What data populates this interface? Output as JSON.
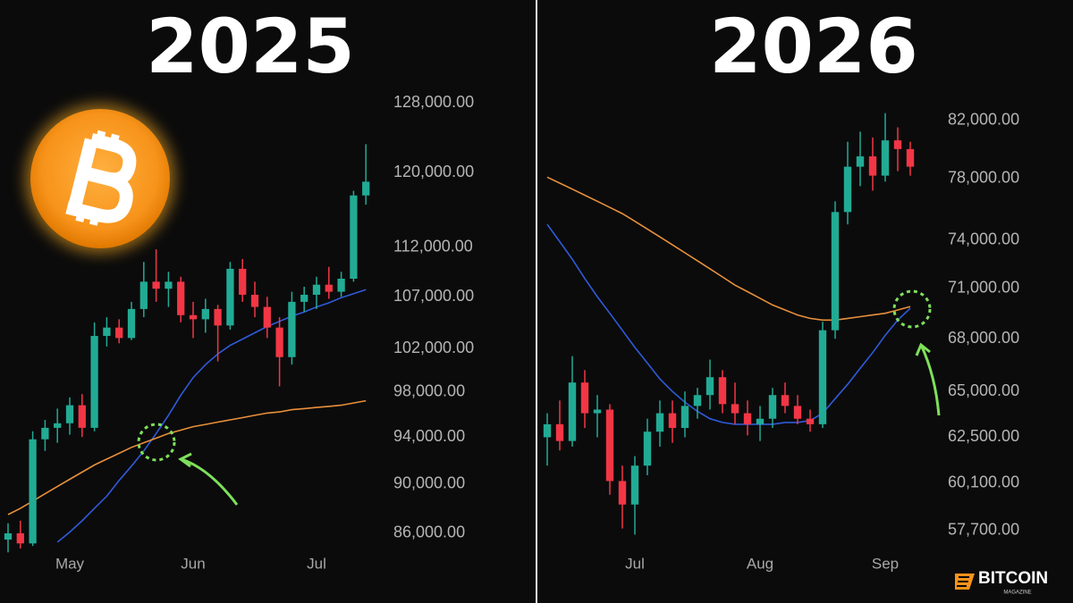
{
  "chart_data": [
    {
      "type": "candlestick",
      "title": "2025",
      "log": true,
      "up_color": "#22ab94",
      "down_color": "#f23645",
      "categories": [
        null,
        null,
        null,
        null,
        null,
        "May",
        null,
        null,
        null,
        null,
        null,
        null,
        null,
        null,
        null,
        "Jun",
        null,
        null,
        null,
        null,
        null,
        null,
        null,
        null,
        null,
        "Jul",
        null,
        null,
        null,
        null
      ],
      "open": [
        85500,
        86000,
        85200,
        93800,
        94800,
        95200,
        96800,
        94800,
        103200,
        104000,
        103000,
        105800,
        108500,
        107800,
        108500,
        105200,
        104800,
        105800,
        104200,
        109800,
        107200,
        106000,
        104000,
        101200,
        106500,
        107200,
        108200,
        107500,
        108800,
        117500
      ],
      "high": [
        86800,
        87000,
        94500,
        95500,
        96500,
        97500,
        97800,
        104500,
        105000,
        104800,
        106500,
        110500,
        111800,
        109500,
        109000,
        106500,
        106800,
        106200,
        110500,
        110800,
        108500,
        107000,
        105000,
        107500,
        108000,
        109000,
        110000,
        109500,
        118000,
        123200
      ],
      "low": [
        84500,
        84800,
        85000,
        92800,
        93500,
        94200,
        94000,
        94500,
        102200,
        102500,
        102800,
        105000,
        106500,
        106000,
        104500,
        103000,
        103500,
        100800,
        103800,
        106500,
        105000,
        103000,
        98500,
        100500,
        105500,
        105800,
        106800,
        107000,
        108500,
        116500
      ],
      "close": [
        86000,
        85200,
        93800,
        94800,
        95200,
        96800,
        94800,
        103200,
        104000,
        103000,
        105800,
        108500,
        107800,
        108500,
        105200,
        104800,
        105800,
        104200,
        109800,
        107200,
        106000,
        104000,
        101200,
        106500,
        107200,
        108200,
        107500,
        108800,
        117500,
        119000
      ],
      "lines": [
        {
          "color": "#2f5bd8",
          "values": [
            null,
            null,
            null,
            null,
            85300,
            86100,
            87000,
            88000,
            89000,
            90300,
            91500,
            92800,
            94300,
            95900,
            97700,
            99300,
            100500,
            101500,
            102300,
            102900,
            103500,
            104100,
            104600,
            105100,
            105500,
            106000,
            106400,
            106900,
            107300,
            107700
          ]
        },
        {
          "color": "#e8903a",
          "values": [
            87500,
            88000,
            88600,
            89200,
            89800,
            90400,
            91000,
            91600,
            92100,
            92600,
            93100,
            93500,
            93900,
            94300,
            94600,
            94900,
            95100,
            95300,
            95500,
            95700,
            95900,
            96100,
            96200,
            96400,
            96500,
            96600,
            96700,
            96800,
            97000,
            97200
          ]
        }
      ],
      "ylim": [
        83000,
        129600
      ],
      "yticks": [
        {
          "value": 128000,
          "label": "128,000.00"
        },
        {
          "value": 120000,
          "label": "120,000.00"
        },
        {
          "value": 112000,
          "label": "112,000.00"
        },
        {
          "value": 107000,
          "label": "107,000.00"
        },
        {
          "value": 102000,
          "label": "102,000.00"
        },
        {
          "value": 98000,
          "label": "98,000.00"
        },
        {
          "value": 94000,
          "label": "94,000.00"
        },
        {
          "value": 90000,
          "label": "90,000.00"
        },
        {
          "value": 86000,
          "label": "86,000.00"
        }
      ]
    },
    {
      "type": "candlestick",
      "title": "2026",
      "log": true,
      "up_color": "#22ab94",
      "down_color": "#f23645",
      "categories": [
        null,
        null,
        null,
        null,
        null,
        null,
        null,
        "Jul",
        null,
        null,
        null,
        null,
        null,
        null,
        null,
        null,
        null,
        "Aug",
        null,
        null,
        null,
        null,
        null,
        null,
        null,
        null,
        null,
        "Sep",
        null,
        null
      ],
      "open": [
        62500,
        63200,
        62300,
        65500,
        63800,
        64000,
        60200,
        59000,
        61000,
        62800,
        63800,
        63000,
        64200,
        64800,
        65800,
        64300,
        63800,
        63200,
        63500,
        64800,
        64200,
        63500,
        63200,
        68500,
        75800,
        78800,
        79500,
        78200,
        80600,
        80000
      ],
      "high": [
        63800,
        64500,
        67000,
        66200,
        64800,
        64300,
        61000,
        61500,
        63500,
        64500,
        64500,
        65000,
        65200,
        66800,
        66200,
        65500,
        64500,
        64200,
        65200,
        65500,
        64800,
        64000,
        69000,
        76500,
        80500,
        81200,
        80800,
        82500,
        81500,
        80500
      ],
      "low": [
        61000,
        61800,
        62000,
        63000,
        62500,
        59500,
        57800,
        57500,
        60500,
        62000,
        62200,
        62500,
        63500,
        64000,
        63800,
        63200,
        62600,
        62300,
        63000,
        63800,
        63200,
        62800,
        63000,
        68000,
        75000,
        77500,
        77200,
        77800,
        78500,
        78200
      ],
      "close": [
        63200,
        62300,
        65500,
        63800,
        64000,
        60200,
        59000,
        61000,
        62800,
        63800,
        63000,
        64200,
        64800,
        65800,
        64300,
        63800,
        63200,
        63500,
        64800,
        64200,
        63500,
        63200,
        68500,
        75800,
        78800,
        79500,
        78200,
        80600,
        80000,
        78800
      ],
      "lines": [
        {
          "color": "#2f5bd8",
          "values": [
            75000,
            73900,
            72800,
            71600,
            70500,
            69500,
            68500,
            67500,
            66600,
            65700,
            65000,
            64400,
            63900,
            63500,
            63300,
            63200,
            63200,
            63200,
            63200,
            63300,
            63300,
            63400,
            63800,
            64600,
            65400,
            66300,
            67200,
            68200,
            69100,
            69800
          ]
        },
        {
          "color": "#e8903a",
          "values": [
            78100,
            77700,
            77300,
            76900,
            76500,
            76100,
            75700,
            75200,
            74700,
            74200,
            73700,
            73200,
            72700,
            72200,
            71700,
            71200,
            70800,
            70400,
            70000,
            69700,
            69400,
            69200,
            69100,
            69100,
            69200,
            69300,
            69400,
            69500,
            69700,
            69900
          ]
        }
      ],
      "ylim": [
        55700,
        84200
      ],
      "yticks": [
        {
          "value": 82000,
          "label": "82,000.00"
        },
        {
          "value": 78000,
          "label": "78,000.00"
        },
        {
          "value": 74000,
          "label": "74,000.00"
        },
        {
          "value": 71000,
          "label": "71,000.00"
        },
        {
          "value": 68000,
          "label": "68,000.00"
        },
        {
          "value": 65000,
          "label": "65,000.00"
        },
        {
          "value": 62500,
          "label": "62,500.00"
        },
        {
          "value": 60100,
          "label": "60,100.00"
        },
        {
          "value": 57700,
          "label": "57,700.00"
        }
      ]
    }
  ],
  "watermark": {
    "name": "BITCOIN",
    "sub": "MAGAZINE"
  }
}
